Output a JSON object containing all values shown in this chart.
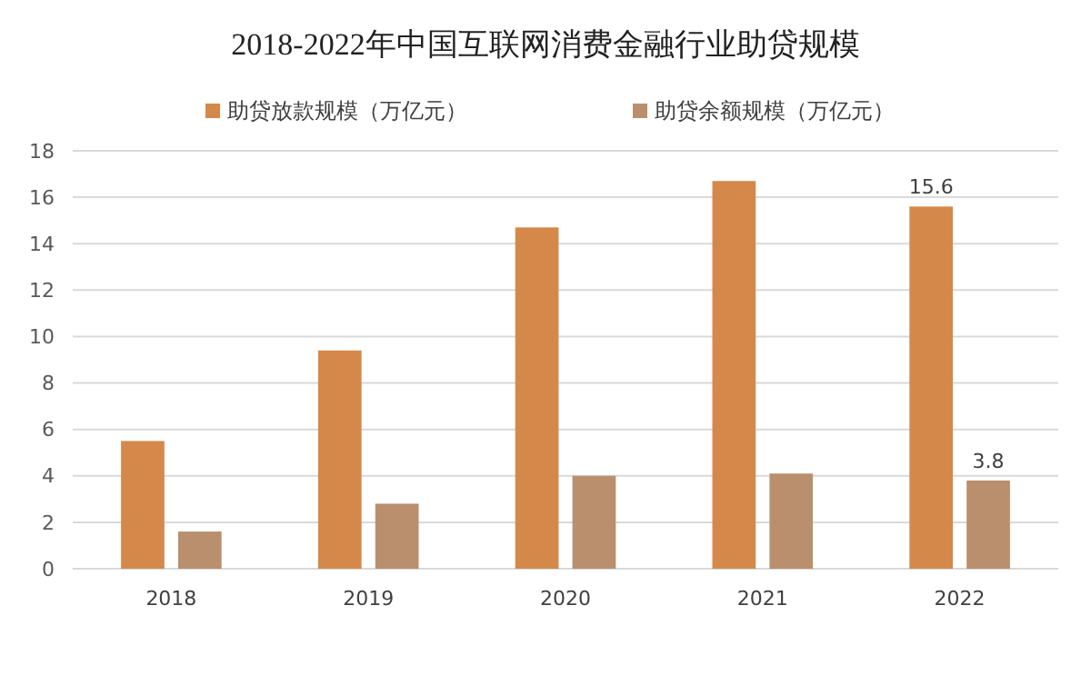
{
  "chart_data": {
    "type": "bar",
    "title": "2018-2022年中国互联网消费金融行业助贷规模",
    "categories": [
      "2018",
      "2019",
      "2020",
      "2021",
      "2022"
    ],
    "series": [
      {
        "name": "助贷放款规模（万亿元）",
        "color": "#d4894a",
        "values": [
          5.5,
          9.4,
          14.7,
          16.7,
          15.6
        ],
        "value_labels": [
          null,
          null,
          null,
          null,
          "15.6"
        ]
      },
      {
        "name": "助贷余额规模（万亿元）",
        "color": "#b98f6e",
        "values": [
          1.6,
          2.8,
          4.0,
          4.1,
          3.8
        ],
        "value_labels": [
          null,
          null,
          null,
          null,
          "3.8"
        ]
      }
    ],
    "ylim": [
      0,
      18
    ],
    "yticks": [
      0,
      2,
      4,
      6,
      8,
      10,
      12,
      14,
      16,
      18
    ],
    "grid": "y",
    "legend": "top"
  }
}
